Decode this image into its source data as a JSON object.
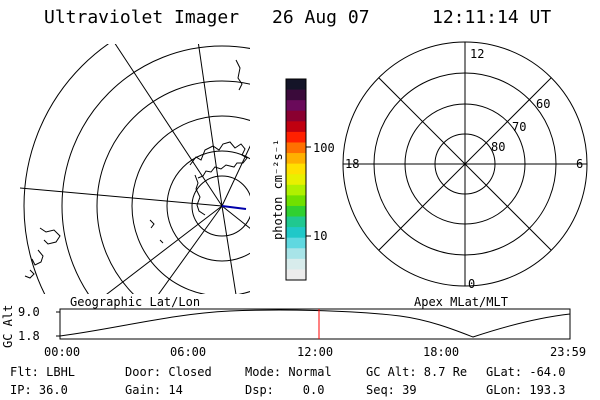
{
  "header": {
    "instrument": "Ultraviolet Imager",
    "date": "26 Aug 07",
    "time": "12:11:14 UT"
  },
  "geo_panel": {
    "label": "Geographic Lat/Lon"
  },
  "colorbar": {
    "unit_label": "photon cm⁻²s⁻¹",
    "tick_100": "100",
    "tick_10": "10",
    "colors": [
      "#141428",
      "#3a0a3a",
      "#6a0a5a",
      "#8a0030",
      "#c00010",
      "#ff2000",
      "#ff7000",
      "#ffb000",
      "#ffe000",
      "#e8f000",
      "#b0f000",
      "#70e000",
      "#30d030",
      "#20c890",
      "#20c8c8",
      "#60d8e0",
      "#a8e4e8",
      "#d8ecec",
      "#ececec"
    ]
  },
  "polar_panel": {
    "label": "Apex MLat/MLT",
    "mlt_12": "12",
    "mlt_18": "18",
    "mlt_6": "6",
    "mlt_0": "0",
    "lat_60": "60",
    "lat_70": "70",
    "lat_80": "80"
  },
  "orbit": {
    "y_label": "GC Alt",
    "y_max": "9.0",
    "y_min": "1.8",
    "x_ticks": [
      "00:00",
      "06:00",
      "12:00",
      "18:00",
      "23:59"
    ],
    "cursor_color": "#ff0000"
  },
  "info": {
    "filter": "Flt: LBHL",
    "door": "Door: Closed",
    "mode": "Mode: Normal",
    "gc_alt": "GC Alt: 8.7 Re",
    "glat": "GLat: -64.0",
    "ip": "IP: 36.0",
    "gain": "Gain: 14",
    "dsp": "Dsp:    0.0",
    "seq": "Seq: 39",
    "glon": "GLon: 193.3"
  }
}
